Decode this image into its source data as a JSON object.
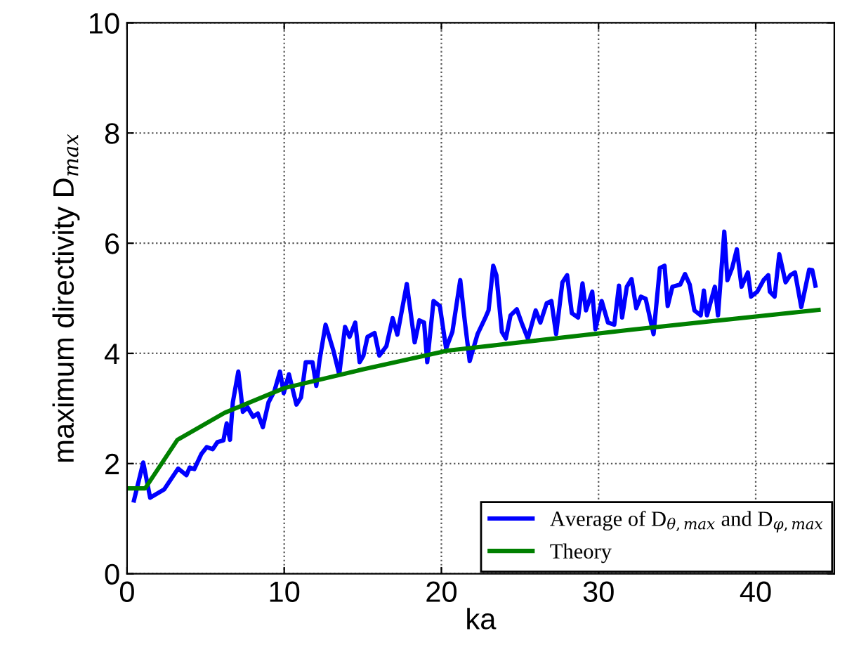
{
  "chart_data": {
    "type": "line",
    "xlabel": "ka",
    "ylabel": "maximum directivity D$_{max}$",
    "xlim": [
      0,
      45
    ],
    "ylim": [
      0,
      10
    ],
    "xticks": [
      0,
      10,
      20,
      30,
      40
    ],
    "yticks": [
      0,
      2,
      4,
      6,
      8,
      10
    ],
    "grid": true,
    "legend": "bottom right",
    "line_style": "solid",
    "series": [
      {
        "name": "Average of D$_{θ,max}$ and D$_{φ,max}$",
        "color": "#0000ff",
        "x": [
          0.44,
          1.03,
          1.47,
          2.36,
          3.25,
          3.78,
          3.99,
          4.28,
          4.72,
          5.07,
          5.45,
          5.75,
          6.13,
          6.34,
          6.55,
          6.73,
          7.08,
          7.37,
          7.67,
          8.02,
          8.32,
          8.64,
          9.0,
          9.38,
          9.73,
          9.97,
          10.3,
          10.78,
          11.07,
          11.37,
          11.8,
          12.04,
          12.25,
          12.63,
          13.13,
          13.5,
          13.87,
          14.16,
          14.52,
          14.8,
          15.04,
          15.3,
          15.75,
          16.05,
          16.5,
          16.9,
          17.2,
          17.8,
          18.3,
          18.6,
          18.9,
          19.1,
          19.5,
          19.9,
          20.3,
          20.7,
          21.2,
          21.5,
          21.8,
          22.3,
          22.8,
          23.0,
          23.3,
          23.5,
          23.85,
          24.1,
          24.4,
          24.8,
          25.1,
          25.5,
          26.0,
          26.3,
          26.7,
          27.0,
          27.3,
          27.7,
          28.0,
          28.3,
          28.7,
          28.98,
          29.2,
          29.6,
          29.8,
          30.2,
          30.6,
          31.0,
          31.3,
          31.5,
          31.8,
          32.1,
          32.4,
          32.7,
          33.0,
          33.5,
          33.9,
          34.2,
          34.4,
          34.7,
          35.2,
          35.5,
          35.8,
          36.1,
          36.5,
          36.7,
          36.9,
          37.4,
          37.6,
          38.0,
          38.2,
          38.5,
          38.8,
          39.1,
          39.5,
          39.7,
          40.1,
          40.5,
          40.8,
          40.9,
          41.2,
          41.5,
          41.9,
          42.2,
          42.5,
          42.9,
          43.4,
          43.6,
          43.8
        ],
        "values": [
          1.33,
          2.02,
          1.38,
          1.53,
          1.91,
          1.79,
          1.93,
          1.9,
          2.17,
          2.3,
          2.26,
          2.39,
          2.42,
          2.73,
          2.43,
          3.11,
          3.67,
          2.94,
          3.02,
          2.85,
          2.91,
          2.66,
          3.11,
          3.32,
          3.67,
          3.28,
          3.62,
          3.07,
          3.2,
          3.84,
          3.84,
          3.41,
          3.88,
          4.52,
          4.05,
          3.62,
          4.48,
          4.3,
          4.56,
          3.84,
          3.96,
          4.3,
          4.37,
          3.96,
          4.13,
          4.64,
          4.34,
          5.26,
          4.2,
          4.6,
          4.56,
          3.84,
          4.95,
          4.86,
          4.09,
          4.39,
          5.33,
          4.56,
          3.86,
          4.35,
          4.65,
          4.78,
          5.59,
          5.42,
          4.39,
          4.27,
          4.69,
          4.8,
          4.56,
          4.27,
          4.78,
          4.56,
          4.91,
          4.95,
          4.35,
          5.29,
          5.42,
          4.73,
          4.65,
          5.27,
          4.78,
          5.12,
          4.44,
          4.95,
          4.56,
          4.52,
          5.23,
          4.65,
          5.21,
          5.35,
          4.82,
          5.03,
          4.99,
          4.35,
          5.55,
          5.59,
          4.86,
          5.21,
          5.25,
          5.44,
          5.25,
          4.78,
          4.69,
          5.14,
          4.69,
          5.21,
          4.69,
          6.21,
          5.33,
          5.55,
          5.89,
          5.21,
          5.47,
          5.03,
          5.12,
          5.33,
          5.42,
          5.12,
          5.03,
          5.8,
          5.29,
          5.42,
          5.47,
          4.84,
          5.52,
          5.51,
          5.23
        ]
      },
      {
        "name": "Theory",
        "color": "#008000",
        "x": [
          0,
          1.15,
          3.2,
          6.2,
          10,
          15,
          20.4,
          21,
          32.1,
          44
        ],
        "values": [
          1.55,
          1.55,
          2.43,
          2.92,
          3.37,
          3.71,
          4.05,
          4.07,
          4.43,
          4.79
        ]
      }
    ]
  }
}
